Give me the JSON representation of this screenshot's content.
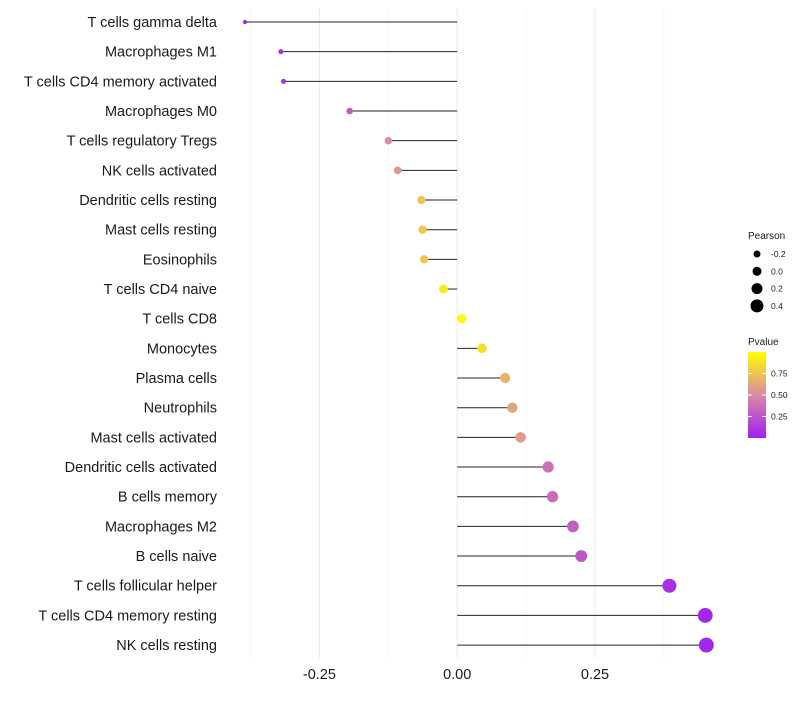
{
  "chart_data": {
    "type": "lollipop",
    "title": "",
    "xlabel": "",
    "ylabel": "",
    "xlim": [
      -0.385,
      0.455
    ],
    "x_ticks": [
      {
        "value": -0.25,
        "label": "-0.25"
      },
      {
        "value": 0.0,
        "label": "0.00"
      },
      {
        "value": 0.25,
        "label": "0.25"
      }
    ],
    "grid": true,
    "points": [
      {
        "label": "T cells gamma delta",
        "value": -0.385,
        "pvalue": 0.02
      },
      {
        "label": "Macrophages M1",
        "value": -0.32,
        "pvalue": 0.08
      },
      {
        "label": "T cells CD4 memory activated",
        "value": -0.315,
        "pvalue": 0.09
      },
      {
        "label": "Macrophages M0",
        "value": -0.195,
        "pvalue": 0.3
      },
      {
        "label": "T cells regulatory  Tregs ",
        "value": -0.125,
        "pvalue": 0.52
      },
      {
        "label": "NK cells activated",
        "value": -0.108,
        "pvalue": 0.57
      },
      {
        "label": "Dendritic cells resting",
        "value": -0.065,
        "pvalue": 0.75
      },
      {
        "label": "Mast cells resting",
        "value": -0.063,
        "pvalue": 0.76
      },
      {
        "label": "Eosinophils",
        "value": -0.06,
        "pvalue": 0.76
      },
      {
        "label": "T cells CD4 naive",
        "value": -0.025,
        "pvalue": 0.92
      },
      {
        "label": "T cells CD8",
        "value": 0.008,
        "pvalue": 0.99
      },
      {
        "label": "Monocytes",
        "value": 0.045,
        "pvalue": 0.87
      },
      {
        "label": "Plasma cells",
        "value": 0.087,
        "pvalue": 0.68
      },
      {
        "label": "Neutrophils",
        "value": 0.1,
        "pvalue": 0.62
      },
      {
        "label": "Mast cells activated",
        "value": 0.115,
        "pvalue": 0.58
      },
      {
        "label": "Dendritic cells activated",
        "value": 0.165,
        "pvalue": 0.38
      },
      {
        "label": "B cells memory",
        "value": 0.173,
        "pvalue": 0.36
      },
      {
        "label": "Macrophages M2",
        "value": 0.21,
        "pvalue": 0.3
      },
      {
        "label": "B cells naive",
        "value": 0.225,
        "pvalue": 0.26
      },
      {
        "label": "T cells follicular helper",
        "value": 0.385,
        "pvalue": 0.07
      },
      {
        "label": "T cells CD4 memory resting",
        "value": 0.45,
        "pvalue": 0.03
      },
      {
        "label": "NK cells resting",
        "value": 0.452,
        "pvalue": 0.03
      }
    ],
    "legend_pearson": {
      "title": "Pearson",
      "entries": [
        {
          "label": "-0.2",
          "value": -0.2
        },
        {
          "label": "0.0",
          "value": 0.0
        },
        {
          "label": "0.2",
          "value": 0.2
        },
        {
          "label": "0.4",
          "value": 0.4
        }
      ]
    },
    "legend_pvalue": {
      "title": "Pvalue",
      "ticks": [
        {
          "label": "0.75",
          "value": 0.75
        },
        {
          "label": "0.50",
          "value": 0.5
        },
        {
          "label": "0.25",
          "value": 0.25
        }
      ],
      "range": [
        0.0,
        1.0
      ],
      "color_low": "#a020f0",
      "color_mid": "#d98aa4",
      "color_high": "#ffff00"
    },
    "legend_placement": "right"
  }
}
